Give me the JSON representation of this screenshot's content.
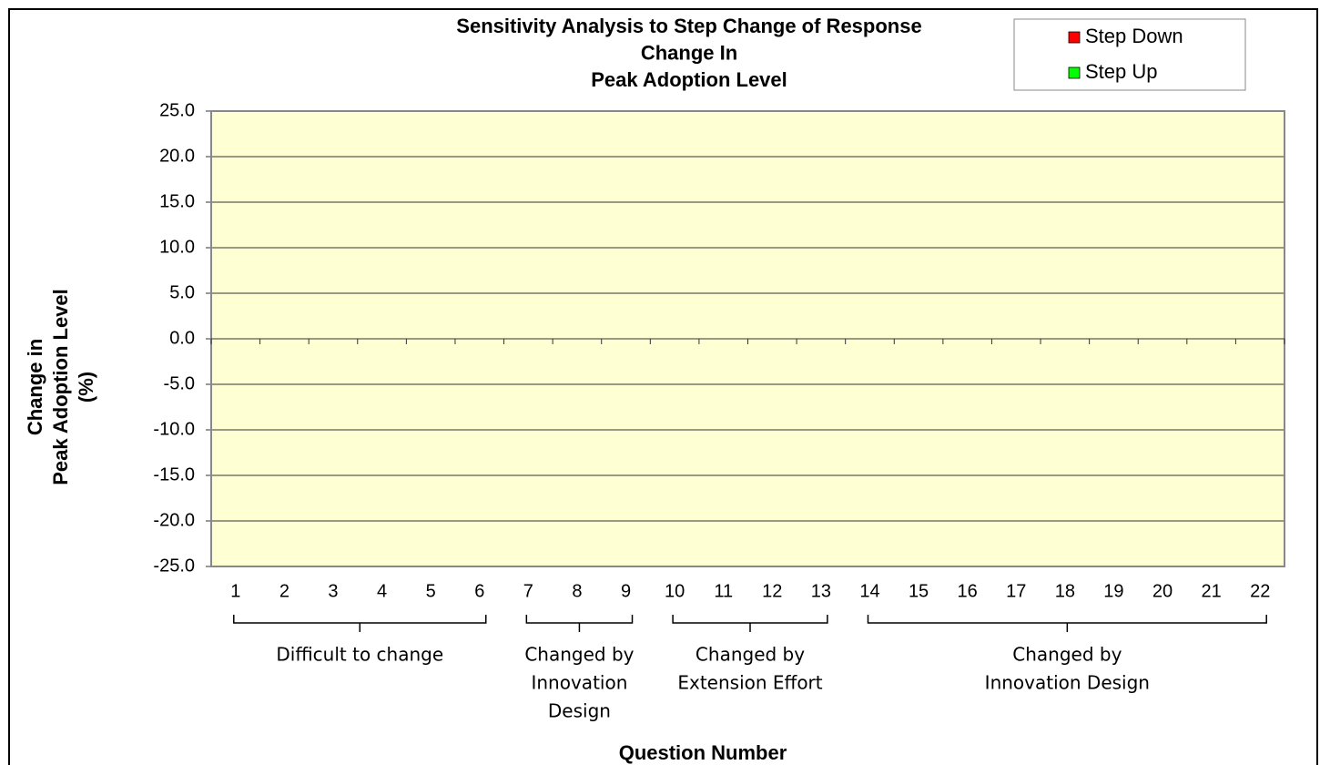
{
  "chart_data": {
    "type": "bar",
    "title": [
      "Sensitivity Analysis to Step Change of Response",
      "Change In",
      "Peak Adoption Level"
    ],
    "y_label": [
      "Change in",
      "Peak Adoption Level",
      "(%)"
    ],
    "x_label": "Question Number",
    "categories": [
      "1",
      "2",
      "3",
      "4",
      "5",
      "6",
      "7",
      "8",
      "9",
      "10",
      "11",
      "12",
      "13",
      "14",
      "15",
      "16",
      "17",
      "18",
      "19",
      "20",
      "21",
      "22"
    ],
    "series": [
      {
        "name": "Step Down",
        "color": "#ff0000",
        "values": [
          0,
          0,
          0,
          0,
          0,
          0,
          0,
          0,
          0,
          0,
          0,
          0,
          0,
          0,
          0,
          0,
          0,
          0,
          0,
          0,
          0,
          0
        ]
      },
      {
        "name": "Step Up",
        "color": "#00ff00",
        "values": [
          0,
          0,
          0,
          0,
          0,
          0,
          0,
          0,
          0,
          0,
          0,
          0,
          0,
          0,
          0,
          0,
          0,
          0,
          0,
          0,
          0,
          0
        ]
      }
    ],
    "ylim": [
      -25,
      25
    ],
    "yticks": [
      {
        "value": -25,
        "label": "-25.0"
      },
      {
        "value": -20,
        "label": "-20.0"
      },
      {
        "value": -15,
        "label": "-15.0"
      },
      {
        "value": -10,
        "label": "-10.0"
      },
      {
        "value": -5,
        "label": "-5.0"
      },
      {
        "value": 0,
        "label": "0.0"
      },
      {
        "value": 5,
        "label": "5.0"
      },
      {
        "value": 10,
        "label": "10.0"
      },
      {
        "value": 15,
        "label": "15.0"
      },
      {
        "value": 20,
        "label": "20.0"
      },
      {
        "value": 25,
        "label": "25.0"
      }
    ],
    "grid": true,
    "legend": "top-right",
    "plot_background": "#ffffd4",
    "groups": [
      {
        "label": [
          "Difficult to change"
        ],
        "first": "1",
        "last": "6"
      },
      {
        "label": [
          "Changed by",
          "Innovation",
          "Design"
        ],
        "first": "7",
        "last": "9"
      },
      {
        "label": [
          "Changed by",
          "Extension Effort"
        ],
        "first": "10",
        "last": "13"
      },
      {
        "label": [
          "Changed by",
          "Innovation Design"
        ],
        "first": "14",
        "last": "22"
      }
    ]
  }
}
